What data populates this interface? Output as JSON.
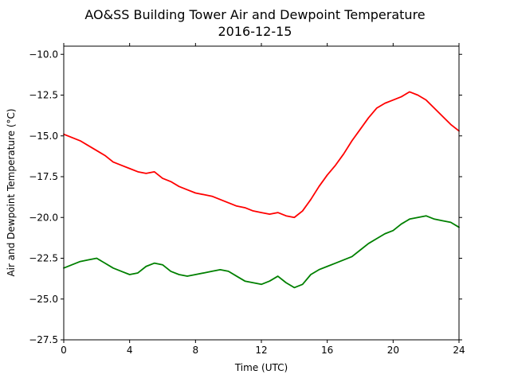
{
  "chart_data": {
    "type": "line",
    "title": "AO&SS Building Tower Air and Dewpoint Temperature",
    "subtitle": "2016-12-15",
    "xlabel": "Time (UTC)",
    "ylabel": "Air and Dewpoint Temperature (°C)",
    "xlim": [
      0,
      24
    ],
    "ylim": [
      -27.5,
      -9.5
    ],
    "xticks": [
      0,
      4,
      8,
      12,
      16,
      20,
      24
    ],
    "xtick_labels": [
      "0",
      "4",
      "8",
      "12",
      "16",
      "20",
      "24"
    ],
    "yticks": [
      -27.5,
      -25.0,
      -22.5,
      -20.0,
      -17.5,
      -15.0,
      -12.5,
      -10.0
    ],
    "ytick_labels": [
      "−27.5",
      "−25.0",
      "−22.5",
      "−20.0",
      "−17.5",
      "−15.0",
      "−12.5",
      "−10.0"
    ],
    "grid": false,
    "legend": "none",
    "series": [
      {
        "color": "#ff0000",
        "x": [
          0,
          0.5,
          1,
          1.5,
          2,
          2.5,
          3,
          3.5,
          4,
          4.5,
          5,
          5.5,
          6,
          6.5,
          7,
          7.5,
          8,
          8.5,
          9,
          9.5,
          10,
          10.5,
          11,
          11.5,
          12,
          12.5,
          13,
          13.5,
          14,
          14.5,
          15,
          15.5,
          16,
          16.5,
          17,
          17.5,
          18,
          18.5,
          19,
          19.5,
          20,
          20.5,
          21,
          21.5,
          22,
          22.5,
          23,
          23.5,
          24
        ],
        "y": [
          -14.9,
          -15.1,
          -15.3,
          -15.6,
          -15.9,
          -16.2,
          -16.6,
          -16.8,
          -17.0,
          -17.2,
          -17.3,
          -17.2,
          -17.6,
          -17.8,
          -18.1,
          -18.3,
          -18.5,
          -18.6,
          -18.7,
          -18.9,
          -19.1,
          -19.3,
          -19.4,
          -19.6,
          -19.7,
          -19.8,
          -19.7,
          -19.9,
          -20.0,
          -19.6,
          -18.9,
          -18.1,
          -17.4,
          -16.8,
          -16.1,
          -15.3,
          -14.6,
          -13.9,
          -13.3,
          -13.0,
          -12.8,
          -12.6,
          -12.3,
          -12.5,
          -12.8,
          -13.3,
          -13.8,
          -14.3,
          -14.7
        ]
      },
      {
        "color": "#008000",
        "x": [
          0,
          0.5,
          1,
          1.5,
          2,
          2.5,
          3,
          3.5,
          4,
          4.5,
          5,
          5.5,
          6,
          6.5,
          7,
          7.5,
          8,
          8.5,
          9,
          9.5,
          10,
          10.5,
          11,
          11.5,
          12,
          12.5,
          13,
          13.5,
          14,
          14.5,
          15,
          15.5,
          16,
          16.5,
          17,
          17.5,
          18,
          18.5,
          19,
          19.5,
          20,
          20.5,
          21,
          21.5,
          22,
          22.5,
          23,
          23.5,
          24
        ],
        "y": [
          -23.1,
          -22.9,
          -22.7,
          -22.6,
          -22.5,
          -22.8,
          -23.1,
          -23.3,
          -23.5,
          -23.4,
          -23.0,
          -22.8,
          -22.9,
          -23.3,
          -23.5,
          -23.6,
          -23.5,
          -23.4,
          -23.3,
          -23.2,
          -23.3,
          -23.6,
          -23.9,
          -24.0,
          -24.1,
          -23.9,
          -23.6,
          -24.0,
          -24.3,
          -24.1,
          -23.5,
          -23.2,
          -23.0,
          -22.8,
          -22.6,
          -22.4,
          -22.0,
          -21.6,
          -21.3,
          -21.0,
          -20.8,
          -20.4,
          -20.1,
          -20.0,
          -19.9,
          -20.1,
          -20.2,
          -20.3,
          -20.6
        ]
      }
    ]
  }
}
